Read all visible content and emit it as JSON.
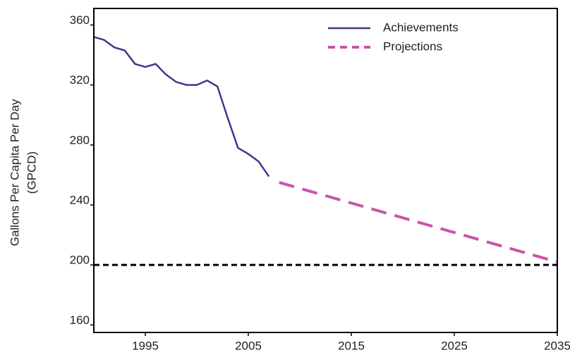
{
  "chart_data": {
    "type": "line",
    "ylabel": [
      "Gallons Per Capita Per Day",
      "(GPCD)"
    ],
    "xlim": [
      1990,
      2035
    ],
    "xticks": [
      1995,
      2005,
      2015,
      2025,
      2035
    ],
    "ylim": [
      155,
      371
    ],
    "yticks": [
      160,
      200,
      240,
      280,
      320,
      360
    ],
    "legend": "top-right",
    "series": [
      {
        "name": "Achievements",
        "color": "#3a3a8c",
        "dashed": false,
        "x": [
          1990,
          1991,
          1992,
          1993,
          1994,
          1995,
          1996,
          1997,
          1998,
          1999,
          2000,
          2001,
          2002,
          2003,
          2004,
          2005,
          2006,
          2007
        ],
        "values": [
          352,
          350,
          345,
          343,
          334,
          332,
          334,
          327,
          322,
          320,
          320,
          323,
          319,
          298,
          278,
          274,
          269,
          259
        ]
      },
      {
        "name": "Projections",
        "color": "#c954a8",
        "dashed": true,
        "x": [
          2008,
          2035
        ],
        "values": [
          255,
          202
        ]
      }
    ],
    "reference_line": {
      "value": 200,
      "color": "#000000"
    }
  }
}
